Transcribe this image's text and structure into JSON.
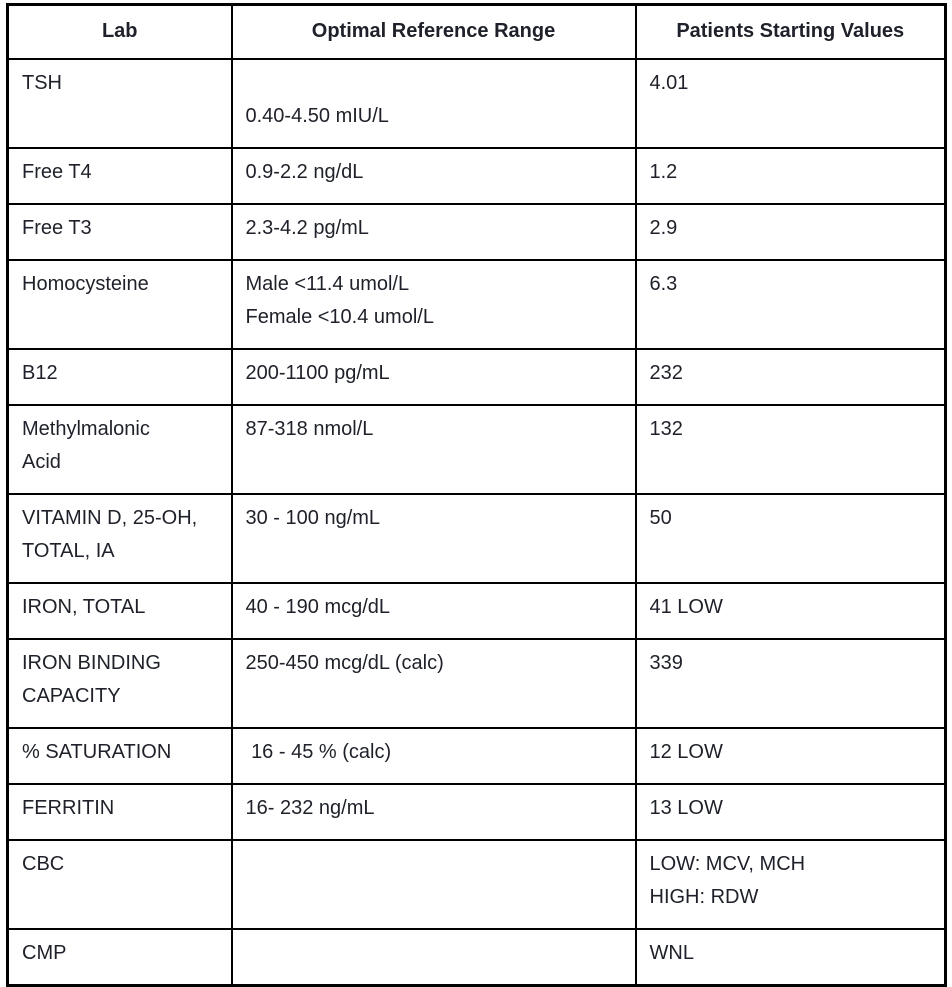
{
  "table": {
    "columns": [
      {
        "label": "Lab"
      },
      {
        "label": "Optimal Reference Range"
      },
      {
        "label": "Patients Starting Values"
      }
    ],
    "rows": [
      {
        "lab": "TSH",
        "range": "\n0.40-4.50 mIU/L",
        "value": "4.01",
        "status": "normal"
      },
      {
        "lab": "Free T4",
        "range": "0.9-2.2 ng/dL",
        "value": "1.2",
        "status": "normal"
      },
      {
        "lab": "Free T3",
        "range": "2.3-4.2 pg/mL",
        "value": "2.9",
        "status": "normal"
      },
      {
        "lab": "Homocysteine",
        "range": "Male <11.4 umol/L\nFemale <10.4 umol/L",
        "value": "6.3",
        "status": "normal"
      },
      {
        "lab": "B12",
        "range": "200-1100 pg/mL",
        "value": "232",
        "status": "normal"
      },
      {
        "lab": "Methylmalonic\nAcid",
        "range": "87-318 nmol/L",
        "value": "132",
        "status": "normal"
      },
      {
        "lab": "VITAMIN D, 25-OH,\nTOTAL, IA",
        "range": "30 - 100 ng/mL",
        "value": "50",
        "status": "normal"
      },
      {
        "lab": "IRON, TOTAL",
        "range": "40 - 190 mcg/dL",
        "value": "41 LOW",
        "status": "abnormal"
      },
      {
        "lab": "IRON BINDING\nCAPACITY",
        "range": "250-450 mcg/dL (calc)",
        "value": "339",
        "status": "normal"
      },
      {
        "lab": "% SATURATION",
        "range": " 16 - 45 % (calc)",
        "value": "12 LOW",
        "status": "abnormal"
      },
      {
        "lab": "FERRITIN",
        "range": "16- 232 ng/mL",
        "value": "13 LOW",
        "status": "abnormal"
      },
      {
        "lab": "CBC",
        "range": "",
        "value": "LOW: MCV, MCH\nHIGH: RDW",
        "status": "abnormal"
      },
      {
        "lab": "CMP",
        "range": "",
        "value": "WNL",
        "status": "normal"
      }
    ]
  },
  "colors": {
    "body_text": "#1e2129",
    "abnormal_text": "#e8432d",
    "border": "#000000",
    "background": "#ffffff"
  }
}
